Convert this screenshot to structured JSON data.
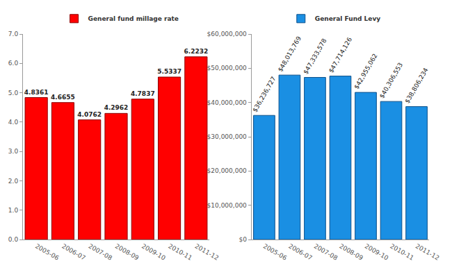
{
  "chart_data": [
    {
      "type": "bar",
      "categories": [
        "2005-06",
        "2006-07",
        "2007-08",
        "2008-09",
        "2009-10",
        "2010-11",
        "2011-12"
      ],
      "series": [
        {
          "name": "General fund millage rate",
          "color": "#ff0000",
          "values": [
            4.8361,
            4.6655,
            4.0762,
            4.2962,
            4.7837,
            5.5337,
            6.2232
          ]
        }
      ],
      "ylim": [
        0,
        7
      ],
      "yticks": [
        {
          "value": 0,
          "label": "0.0"
        },
        {
          "value": 1,
          "label": "1.0"
        },
        {
          "value": 2,
          "label": "2.0"
        },
        {
          "value": 3,
          "label": "3.0"
        },
        {
          "value": 4,
          "label": "4.0"
        },
        {
          "value": 5,
          "label": "5.0"
        },
        {
          "value": 6,
          "label": "6.0"
        },
        {
          "value": 7,
          "label": "7.0"
        }
      ],
      "grid": false,
      "legend": "top",
      "data_labels": true
    },
    {
      "type": "bar",
      "categories": [
        "2005-06",
        "2006-07",
        "2007-08",
        "2008-09",
        "2009-10",
        "2010-11",
        "2011-12"
      ],
      "series": [
        {
          "name": "General Fund Levy",
          "color": "#1a8fe3",
          "values": [
            36236727,
            48013769,
            47333578,
            47714126,
            42955062,
            40306553,
            38806234
          ],
          "value_labels": [
            "$36,236,727",
            "$48,013,769",
            "$47,333,578",
            "$47,714,126",
            "$42,955,062",
            "$40,306,553",
            "$38,806,234"
          ]
        }
      ],
      "ylim": [
        0,
        60000000
      ],
      "yticks": [
        {
          "value": 0,
          "label": "$0"
        },
        {
          "value": 10000000,
          "label": "$10,000,000"
        },
        {
          "value": 20000000,
          "label": "$20,000,000"
        },
        {
          "value": 30000000,
          "label": "$30,000,000"
        },
        {
          "value": 40000000,
          "label": "$40,000,000"
        },
        {
          "value": 50000000,
          "label": "$50,000,000"
        },
        {
          "value": 60000000,
          "label": "$60,000,000"
        }
      ],
      "grid": false,
      "legend": "top",
      "data_labels": true
    }
  ]
}
